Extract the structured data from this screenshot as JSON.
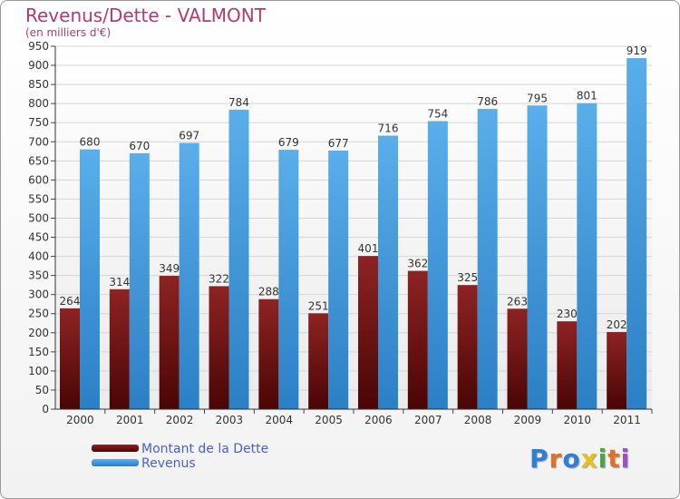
{
  "title": "Revenus/Dette - VALMONT",
  "subtitle": "(en milliers d'€)",
  "chart_data": {
    "type": "bar",
    "categories": [
      "2000",
      "2001",
      "2002",
      "2003",
      "2004",
      "2005",
      "2006",
      "2007",
      "2008",
      "2009",
      "2010",
      "2011"
    ],
    "series": [
      {
        "name": "Montant de la Dette",
        "values": [
          264,
          314,
          349,
          322,
          288,
          251,
          401,
          362,
          325,
          263,
          230,
          202
        ],
        "color": "#7a1414"
      },
      {
        "name": "Revenus",
        "values": [
          680,
          670,
          697,
          784,
          679,
          677,
          716,
          754,
          786,
          795,
          801,
          919
        ],
        "color": "#4aa3e6"
      }
    ],
    "ylim": [
      0,
      950
    ],
    "yticks": [
      0,
      50,
      100,
      150,
      200,
      250,
      300,
      350,
      400,
      450,
      500,
      550,
      600,
      650,
      700,
      750,
      800,
      850,
      900,
      950
    ],
    "grid": true,
    "legend": "bottom-left"
  },
  "logo": {
    "text": "Proxiti",
    "colors": [
      "#2f7fd6",
      "#e0702a",
      "#2f7fd6",
      "#e8c21c",
      "#46a64a",
      "#e0702a",
      "#9a52c4"
    ]
  }
}
